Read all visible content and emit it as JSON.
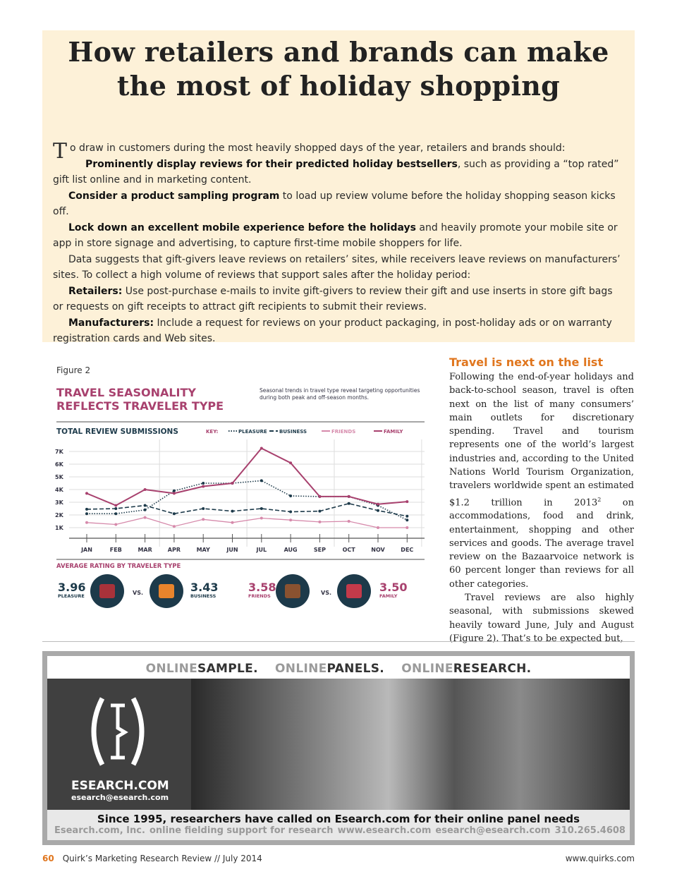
{
  "headline": "How retailers and brands can make the most of holiday shopping",
  "intro": {
    "dropcap": "T",
    "lead": "o draw in customers during the most heavily shopped days of the year, retailers and brands should:",
    "items": [
      {
        "bold": "Prominently display reviews for their predicted holiday bestsellers",
        "text": ", such as providing a “top rated” gift list online and in marketing content."
      },
      {
        "bold": "Consider a product sampling program",
        "text": " to load up review volume before the holiday shopping season kicks off."
      },
      {
        "bold": "Lock down an excellent mobile experience before the holidays",
        "text": " and heavily promote your mobile site or app in store signage and advertising, to capture first-time mobile shoppers for life."
      },
      {
        "bold": "",
        "text": "Data suggests that gift-givers leave reviews on retailers’ sites, while receivers leave reviews on manufacturers’ sites. To collect a high volume of reviews that support sales after the holiday period:"
      },
      {
        "bold": "Retailers:",
        "text": " Use post-purchase e-mails to invite gift-givers to review their gift and use inserts in store gift bags or requests on gift receipts to attract gift recipients to submit their reviews."
      },
      {
        "bold": "Manufacturers:",
        "text": " Include a request for reviews on your product packaging, in post-holiday ads or on warranty registration cards and Web sites."
      }
    ]
  },
  "figure": {
    "label": "Figure 2",
    "title_line1": "TRAVEL SEASONALITY",
    "title_line2": "REFLECTS TRAVELER TYPE",
    "subtitle_line1": "Seasonal trends in travel type reveal targeting opportunities",
    "subtitle_line2": "during both peak and off-season months.",
    "chart_heading": "TOTAL REVIEW SUBMISSIONS",
    "key_label": "KEY:",
    "rating_heading": "AVERAGE RATING BY TRAVELER TYPE",
    "vs": "VS.",
    "ratings": [
      {
        "value": "3.96",
        "label": "PLEASURE",
        "icon": "hawaiian-shirt-icon",
        "color": "#1d3a4a"
      },
      {
        "value": "3.43",
        "label": "BUSINESS",
        "icon": "briefcase-icon",
        "color": "#1d3a4a"
      },
      {
        "value": "3.58",
        "label": "FRIENDS",
        "icon": "beer-mug-icon",
        "color": "#a8416e"
      },
      {
        "value": "3.50",
        "label": "FAMILY",
        "icon": "luggage-icon",
        "color": "#a8416e"
      }
    ]
  },
  "chart_data": {
    "type": "line",
    "title": "TOTAL REVIEW SUBMISSIONS",
    "categories": [
      "JAN",
      "FEB",
      "MAR",
      "APR",
      "MAY",
      "JUN",
      "JUL",
      "AUG",
      "SEP",
      "OCT",
      "NOV",
      "DEC"
    ],
    "yticks": [
      "1K",
      "2K",
      "3K",
      "4K",
      "5K",
      "6K",
      "7K"
    ],
    "ylim": [
      0,
      7.5
    ],
    "grid": true,
    "legend_placement": "top-right",
    "series": [
      {
        "name": "PLEASURE",
        "style": "dotted",
        "color": "#1d3a4a",
        "values": [
          2.1,
          2.1,
          2.4,
          3.9,
          4.5,
          4.5,
          4.7,
          3.5,
          3.45,
          3.45,
          2.75,
          1.6
        ]
      },
      {
        "name": "BUSINESS",
        "style": "dashed",
        "color": "#1d3a4a",
        "values": [
          2.45,
          2.5,
          2.75,
          2.1,
          2.5,
          2.3,
          2.5,
          2.25,
          2.3,
          2.9,
          2.35,
          1.9
        ]
      },
      {
        "name": "FRIENDS",
        "style": "solid-thin",
        "color": "#d68aab",
        "values": [
          1.4,
          1.25,
          1.8,
          1.1,
          1.65,
          1.4,
          1.75,
          1.6,
          1.45,
          1.5,
          1.0,
          1.0
        ]
      },
      {
        "name": "FAMILY",
        "style": "solid",
        "color": "#a8416e",
        "values": [
          3.7,
          2.75,
          4.0,
          3.7,
          4.25,
          4.5,
          7.25,
          6.1,
          3.45,
          3.45,
          2.85,
          3.05
        ]
      }
    ]
  },
  "column": {
    "title": "Travel is next on the list",
    "p1": "Following the end-of-year holidays and back-to-school season, travel is often next on the list of many consumers’ main outlets for discretionary spending. Travel and tourism represents one of the world’s largest industries and, according to the United Nations World Tourism Organization, travelers worldwide spent an estimated $1.2 trillion in 2013",
    "p1_sup": "2",
    "p1_end": " on accommodations, food and drink, entertainment, shopping and other services and goods. The average travel review on the Bazaarvoice network is 60 percent longer than reviews for all other categories.",
    "p2": "Travel reviews are also highly seasonal, with submissions skewed heavily toward June, July and August (Figure 2). That’s to be expected but,"
  },
  "ad": {
    "header": [
      {
        "prefix": "ONLINE",
        "word": "SAMPLE."
      },
      {
        "prefix": "ONLINE",
        "word": "PANELS."
      },
      {
        "prefix": "ONLINE",
        "word": "RESEARCH."
      }
    ],
    "logo_brand": "ESEARCH.COM",
    "logo_email": "esearch@esearch.com",
    "tagline": "Since 1995, researchers have called on Esearch.com for their online panel needs",
    "meta": [
      "Esearch.com, Inc.",
      "online fielding support for research",
      "www.esearch.com",
      "esearch@esearch.com",
      "310.265.4608"
    ]
  },
  "footer": {
    "page": "60",
    "publication": "Quirk’s Marketing Research Review // July 2014",
    "url": "www.quirks.com"
  }
}
